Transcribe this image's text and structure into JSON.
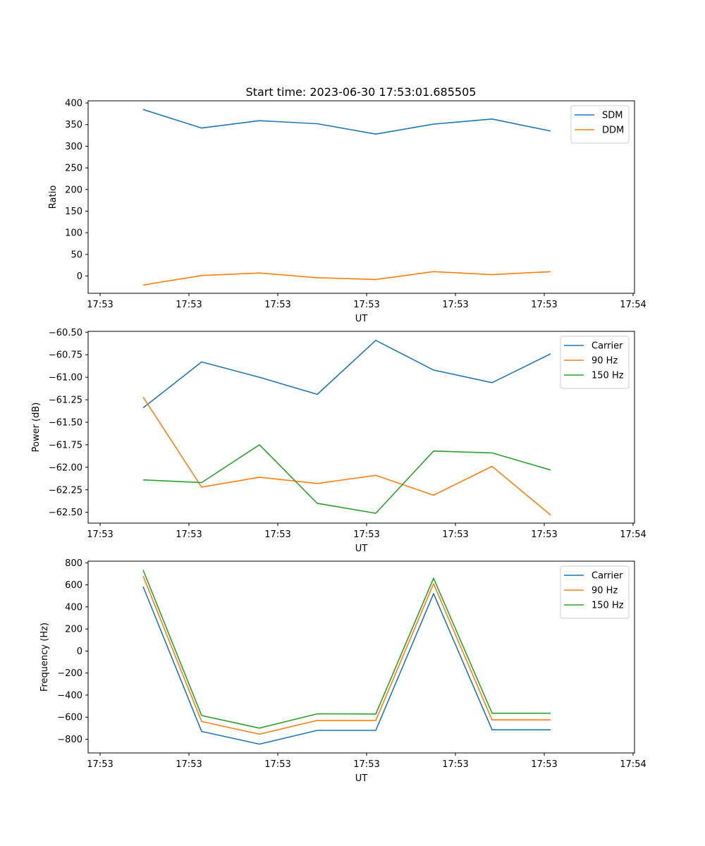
{
  "figure": {
    "title": "Start time: 2023-06-30 17:53:01.685505"
  },
  "chart_data": [
    {
      "type": "line",
      "xlabel": "UT",
      "ylabel": "Ratio",
      "x_tick_labels": [
        "17:53",
        "17:53",
        "17:53",
        "17:53",
        "17:53",
        "17:53",
        "17:54"
      ],
      "ylim": [
        -40,
        405
      ],
      "yticks": [
        0,
        50,
        100,
        150,
        200,
        250,
        300,
        350,
        400
      ],
      "ytick_labels": [
        "0",
        "50",
        "100",
        "150",
        "200",
        "250",
        "300",
        "350",
        "400"
      ],
      "legend_position": "top-right",
      "series": [
        {
          "name": "SDM",
          "color": "#1f77b4",
          "values": [
            385,
            342,
            359,
            352,
            328,
            351,
            363,
            335
          ]
        },
        {
          "name": "DDM",
          "color": "#ff7f0e",
          "values": [
            -21,
            1,
            7,
            -4,
            -8,
            10,
            3,
            10
          ]
        }
      ]
    },
    {
      "type": "line",
      "xlabel": "UT",
      "ylabel": "Power (dB)",
      "x_tick_labels": [
        "17:53",
        "17:53",
        "17:53",
        "17:53",
        "17:53",
        "17:53",
        "17:54"
      ],
      "ylim": [
        -62.62,
        -60.49
      ],
      "yticks": [
        -62.5,
        -62.25,
        -62.0,
        -61.75,
        -61.5,
        -61.25,
        -61.0,
        -60.75,
        -60.5
      ],
      "ytick_labels": [
        "−62.50",
        "−62.25",
        "−62.00",
        "−61.75",
        "−61.50",
        "−61.25",
        "−61.00",
        "−60.75",
        "−60.50"
      ],
      "legend_position": "top-right",
      "series": [
        {
          "name": "Carrier",
          "color": "#1f77b4",
          "values": [
            -61.34,
            -60.83,
            -61.0,
            -61.19,
            -60.59,
            -60.92,
            -61.06,
            -60.74
          ]
        },
        {
          "name": "90 Hz",
          "color": "#ff7f0e",
          "values": [
            -61.22,
            -62.22,
            -62.11,
            -62.18,
            -62.09,
            -62.31,
            -61.99,
            -62.53
          ]
        },
        {
          "name": "150 Hz",
          "color": "#2ca02c",
          "values": [
            -62.14,
            -62.17,
            -61.75,
            -62.4,
            -62.51,
            -61.82,
            -61.84,
            -62.03
          ]
        }
      ]
    },
    {
      "type": "line",
      "xlabel": "UT",
      "ylabel": "Frequency (Hz)",
      "x_tick_labels": [
        "17:53",
        "17:53",
        "17:53",
        "17:53",
        "17:53",
        "17:53",
        "17:54"
      ],
      "ylim": [
        -925,
        815
      ],
      "yticks": [
        -800,
        -600,
        -400,
        -200,
        0,
        200,
        400,
        600,
        800
      ],
      "ytick_labels": [
        "−800",
        "−600",
        "−400",
        "−200",
        "0",
        "200",
        "400",
        "600",
        "800"
      ],
      "legend_position": "top-right",
      "series": [
        {
          "name": "Carrier",
          "color": "#1f77b4",
          "values": [
            585,
            -730,
            -845,
            -720,
            -720,
            520,
            -715,
            -715
          ]
        },
        {
          "name": "90 Hz",
          "color": "#ff7f0e",
          "values": [
            680,
            -640,
            -755,
            -630,
            -630,
            610,
            -625,
            -625
          ]
        },
        {
          "name": "150 Hz",
          "color": "#2ca02c",
          "values": [
            735,
            -585,
            -700,
            -570,
            -572,
            660,
            -565,
            -565
          ]
        }
      ]
    }
  ]
}
